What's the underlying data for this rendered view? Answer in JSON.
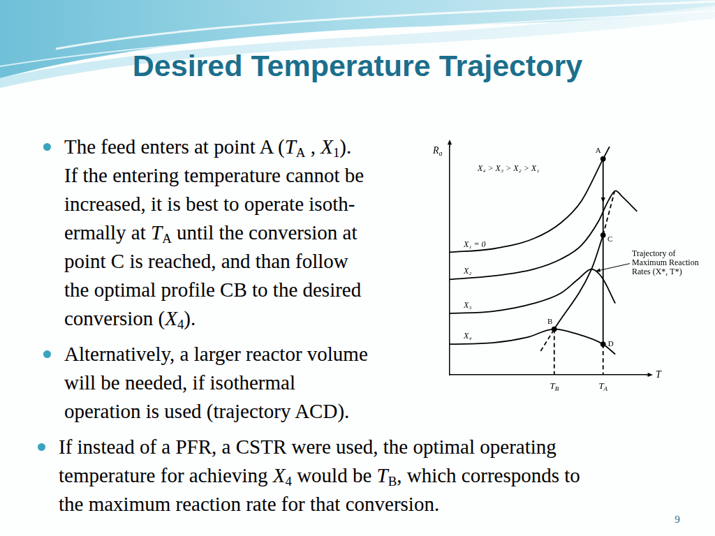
{
  "slide": {
    "title": "Desired Temperature Trajectory",
    "page_number": 9,
    "side_bullets": [
      [
        [
          "The feed enters at point A (",
          {
            "i": "T"
          },
          {
            "sub": "A"
          },
          " , ",
          {
            "i": "X"
          },
          {
            "sub": "1"
          },
          ")."
        ],
        [
          "If the entering temperature cannot be"
        ],
        [
          "increased, it is best to operate isoth-"
        ],
        [
          "ermally at ",
          {
            "i": "T"
          },
          {
            "sub": "A"
          },
          " until the conversion at"
        ],
        [
          "point C is reached, and than follow"
        ],
        [
          "the optimal profile CB to the desired"
        ],
        [
          "conversion (",
          {
            "i": "X"
          },
          {
            "sub": "4"
          },
          ")."
        ]
      ],
      [
        [
          "Alternatively, a larger reactor volume"
        ],
        [
          "will be needed, if isothermal"
        ],
        [
          "operation is used (trajectory ACD)."
        ]
      ]
    ],
    "bottom_bullets": [
      [
        [
          "If instead of a PFR, a CSTR were used, the optimal operating"
        ],
        [
          "temperature for achieving ",
          {
            "i": "X"
          },
          {
            "sub": "4"
          },
          " would be ",
          {
            "i": "T"
          },
          {
            "sub": "B"
          },
          ", which corresponds to"
        ],
        [
          "the maximum reaction rate for that conversion."
        ]
      ]
    ]
  },
  "chart_data": {
    "type": "line",
    "xlabel": [
      {
        "i": "T"
      }
    ],
    "ylabel": [
      {
        "i": "R"
      },
      {
        "sub": "a"
      }
    ],
    "xlim": [
      0,
      100
    ],
    "ylim": [
      0,
      100
    ],
    "tick_labels": false,
    "grid": false,
    "annotation": "X₄ > X₃ > X₂ > X₁",
    "callout": {
      "text": "Trajectory of Maximum Reaction Rates (X*, T*)",
      "x": 72.3,
      "y": 46.3
    },
    "series": [
      {
        "name": "X₁ = 0",
        "color": "#000000",
        "line_style": "solid",
        "x": [
          0,
          22.1,
          42.9,
          56.7,
          67.1,
          78.2,
          81.5
        ],
        "values": [
          53.7,
          55.2,
          59.7,
          66.6,
          76.1,
          94.6,
          100
        ]
      },
      {
        "name": "X₂",
        "color": "#000000",
        "line_style": "solid",
        "x": [
          0,
          22.1,
          42.9,
          56.7,
          67.1,
          75.8,
          81.0,
          84.6,
          88.0,
          95.5
        ],
        "values": [
          41.8,
          43.3,
          46.3,
          50.7,
          56.7,
          67.2,
          76.5,
          80.6,
          78.0,
          71.6
        ]
      },
      {
        "name": "X₃",
        "color": "#000000",
        "line_style": "solid",
        "x": [
          0,
          22.1,
          42.9,
          56.7,
          65.4,
          72.3,
          77.5,
          84.4
        ],
        "values": [
          26.9,
          27.8,
          31.3,
          35.8,
          41.8,
          46.3,
          42.8,
          31.3
        ]
      },
      {
        "name": "X₄",
        "color": "#000000",
        "line_style": "solid",
        "x": [
          0,
          22.1,
          39.4,
          53.3,
          63.7,
          78.2,
          84.4
        ],
        "values": [
          13.4,
          14.0,
          16.4,
          20.0,
          18.2,
          13.4,
          9.0
        ]
      },
      {
        "color": "#000000",
        "line_style": "dashed",
        "x": [
          46.4,
          53.3
        ],
        "values": [
          10.4,
          20.0
        ]
      },
      {
        "color": "#000000",
        "line_style": "solid",
        "x": [
          53.3,
          72.3,
          78.2
        ],
        "values": [
          20.0,
          46.3,
          61.2
        ]
      },
      {
        "color": "#000000",
        "line_style": "dashed",
        "x": [
          78.2,
          84.4
        ],
        "values": [
          61.2,
          81.5
        ]
      },
      {
        "color": "#000000",
        "line_style": "solid",
        "x": [
          78.2,
          78.2
        ],
        "values": [
          94.6,
          13.4
        ]
      },
      {
        "color": "#000000",
        "line_style": "dashed",
        "x": [
          78.2,
          78.2
        ],
        "values": [
          13.4,
          0
        ]
      },
      {
        "color": "#000000",
        "line_style": "dashed",
        "x": [
          53.3,
          53.3
        ],
        "values": [
          20.0,
          0
        ]
      }
    ],
    "points": [
      {
        "label": "A",
        "x": 78.2,
        "y": 94.6
      },
      {
        "label": "C",
        "x": 78.2,
        "y": 61.2
      },
      {
        "label": "B",
        "x": 53.3,
        "y": 20.0
      },
      {
        "label": "D",
        "x": 78.2,
        "y": 13.4
      }
    ],
    "marker": "circle",
    "x_markers": [
      {
        "label": [
          {
            "i": "T"
          },
          {
            "sub": "B"
          }
        ],
        "x": 53.3
      },
      {
        "label": [
          {
            "i": "T"
          },
          {
            "sub": "A"
          }
        ],
        "x": 78.2
      }
    ]
  }
}
